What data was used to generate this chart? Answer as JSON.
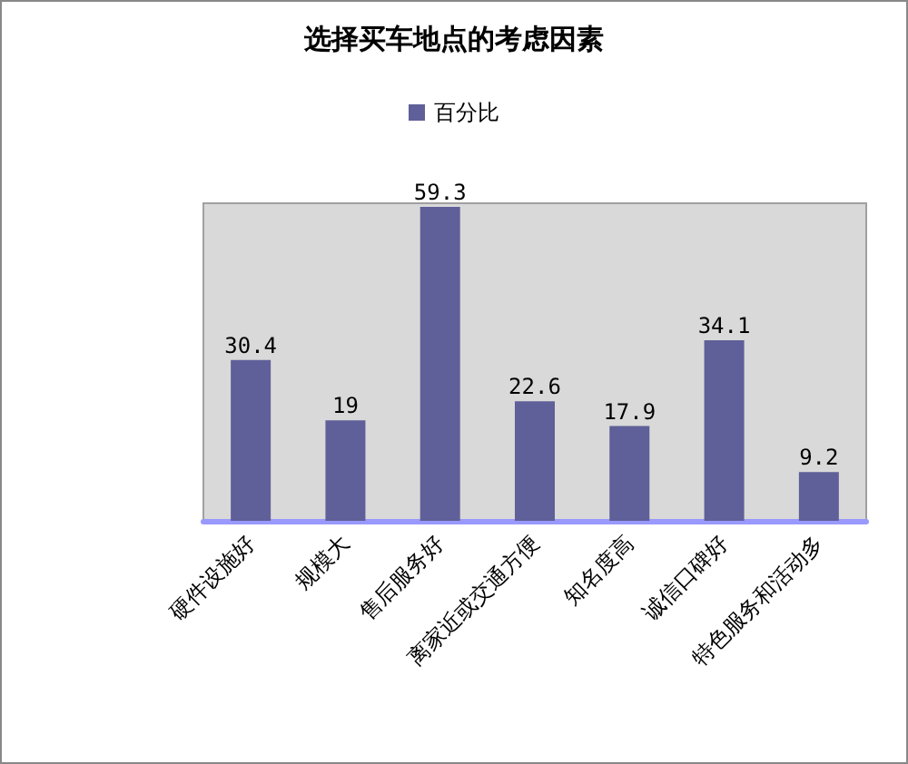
{
  "chart_data": {
    "type": "bar",
    "title": "选择买车地点的考虑因素",
    "categories": [
      "硬件设施好",
      "规模大",
      "售后服务好",
      "离家近或交通方便",
      "知名度高",
      "诚信口碑好",
      "特色服务和活动多"
    ],
    "series": [
      {
        "name": "百分比",
        "color": "#5f5f99",
        "values": [
          30.4,
          19,
          59.3,
          22.6,
          17.9,
          34.1,
          9.2
        ]
      }
    ],
    "data_labels": true,
    "legend": "top",
    "tick_labels": "x"
  }
}
